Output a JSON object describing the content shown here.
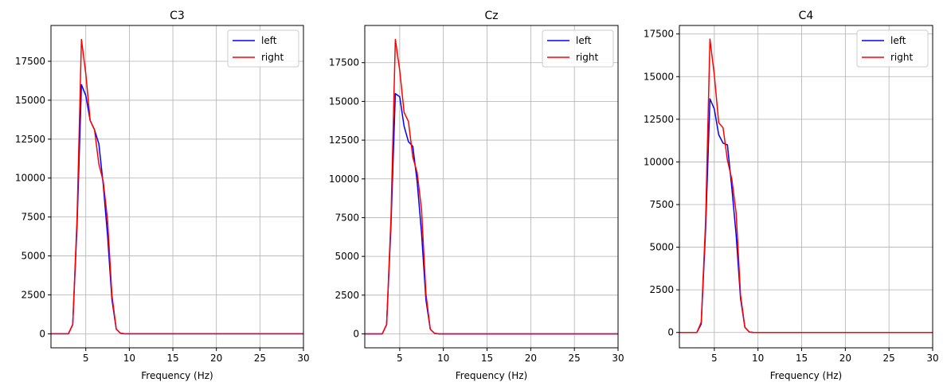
{
  "chart_data": [
    {
      "type": "line",
      "title": "C3",
      "xlabel": "Frequency (Hz)",
      "ylabel": "",
      "xlim": [
        1,
        30
      ],
      "ylim": [
        -900,
        19800
      ],
      "xticks": [
        5,
        10,
        15,
        20,
        25,
        30
      ],
      "yticks": [
        0,
        2500,
        5000,
        7500,
        10000,
        12500,
        15000,
        17500
      ],
      "grid": true,
      "legend": "top-right",
      "series": [
        {
          "name": "left",
          "color": "#0000ff",
          "x": [
            1,
            2,
            3,
            3.5,
            4,
            4.5,
            5,
            5.5,
            6,
            6.5,
            7,
            7.5,
            8,
            8.5,
            9,
            9.5,
            10,
            30
          ],
          "y": [
            0,
            0,
            0,
            600,
            7000,
            16000,
            15300,
            13700,
            13100,
            12200,
            9600,
            6300,
            2200,
            300,
            30,
            0,
            0,
            0
          ]
        },
        {
          "name": "right",
          "color": "#ff0000",
          "x": [
            1,
            2,
            3,
            3.5,
            4,
            4.5,
            5,
            5.5,
            6,
            6.5,
            7,
            7.5,
            8,
            8.5,
            9,
            9.5,
            10,
            30
          ],
          "y": [
            0,
            0,
            0,
            600,
            7500,
            18900,
            16700,
            13700,
            13100,
            10900,
            9800,
            7300,
            2500,
            300,
            30,
            0,
            0,
            0
          ]
        }
      ]
    },
    {
      "type": "line",
      "title": "Cz",
      "xlabel": "Frequency (Hz)",
      "ylabel": "",
      "xlim": [
        1,
        30
      ],
      "ylim": [
        -900,
        19900
      ],
      "xticks": [
        5,
        10,
        15,
        20,
        25,
        30
      ],
      "yticks": [
        0,
        2500,
        5000,
        7500,
        10000,
        12500,
        15000,
        17500
      ],
      "grid": true,
      "legend": "top-right",
      "series": [
        {
          "name": "left",
          "color": "#0000ff",
          "x": [
            1,
            2,
            3,
            3.5,
            4,
            4.5,
            5,
            5.5,
            6,
            6.5,
            7,
            7.5,
            8,
            8.5,
            9,
            9.5,
            10,
            30
          ],
          "y": [
            0,
            0,
            0,
            600,
            7000,
            15500,
            15300,
            13400,
            12400,
            12100,
            9800,
            6500,
            2200,
            300,
            30,
            0,
            0,
            0
          ]
        },
        {
          "name": "right",
          "color": "#ff0000",
          "x": [
            1,
            2,
            3,
            3.5,
            4,
            4.5,
            5,
            5.5,
            6,
            6.5,
            7,
            7.5,
            8,
            8.5,
            9,
            9.5,
            10,
            30
          ],
          "y": [
            0,
            0,
            0,
            600,
            7500,
            19000,
            17000,
            14300,
            13700,
            11400,
            10400,
            8000,
            2600,
            300,
            30,
            0,
            0,
            0
          ]
        }
      ]
    },
    {
      "type": "line",
      "title": "C4",
      "xlabel": "Frequency (Hz)",
      "ylabel": "",
      "xlim": [
        1,
        30
      ],
      "ylim": [
        -900,
        18000
      ],
      "xticks": [
        5,
        10,
        15,
        20,
        25,
        30
      ],
      "yticks": [
        0,
        2500,
        5000,
        7500,
        10000,
        12500,
        15000,
        17500
      ],
      "grid": true,
      "legend": "top-right",
      "series": [
        {
          "name": "left",
          "color": "#0000ff",
          "x": [
            1,
            2,
            3,
            3.5,
            4,
            4.5,
            5,
            5.5,
            6,
            6.5,
            7,
            7.5,
            8,
            8.5,
            9,
            9.5,
            10,
            30
          ],
          "y": [
            0,
            0,
            0,
            500,
            6000,
            13700,
            13100,
            11600,
            11100,
            11000,
            8500,
            5700,
            2000,
            300,
            30,
            0,
            0,
            0
          ]
        },
        {
          "name": "right",
          "color": "#ff0000",
          "x": [
            1,
            2,
            3,
            3.5,
            4,
            4.5,
            5,
            5.5,
            6,
            6.5,
            7,
            7.5,
            8,
            8.5,
            9,
            9.5,
            10,
            30
          ],
          "y": [
            0,
            0,
            0,
            600,
            6500,
            17200,
            15100,
            12300,
            12000,
            10100,
            9000,
            7000,
            2200,
            300,
            30,
            0,
            0,
            0
          ]
        }
      ]
    }
  ]
}
